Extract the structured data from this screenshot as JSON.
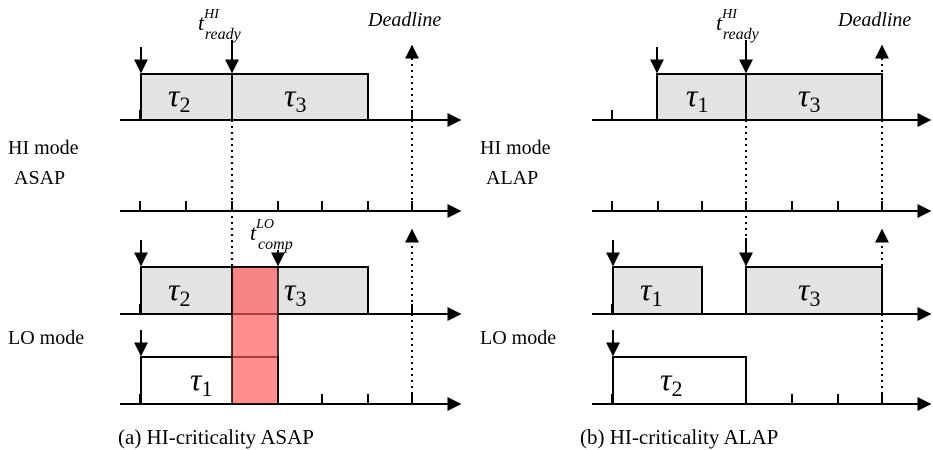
{
  "labels": {
    "t_ready": "t",
    "t_ready_sup": "HI",
    "t_ready_sub": "ready",
    "deadline": "Deadline",
    "t_comp": "t",
    "t_comp_sup": "LO",
    "t_comp_sub": "comp",
    "hi_mode": "HI mode",
    "asap": "ASAP",
    "alap": "ALAP",
    "lo_mode": "LO mode",
    "tau": "τ",
    "sub1": "1",
    "sub2": "2",
    "sub3": "3",
    "caption_a": "(a) HI-criticality ASAP",
    "caption_b": "(b) HI-criticality ALAP"
  },
  "colors": {
    "task_fill": "#e3e3e3",
    "highlight": "#ff5a5a"
  }
}
